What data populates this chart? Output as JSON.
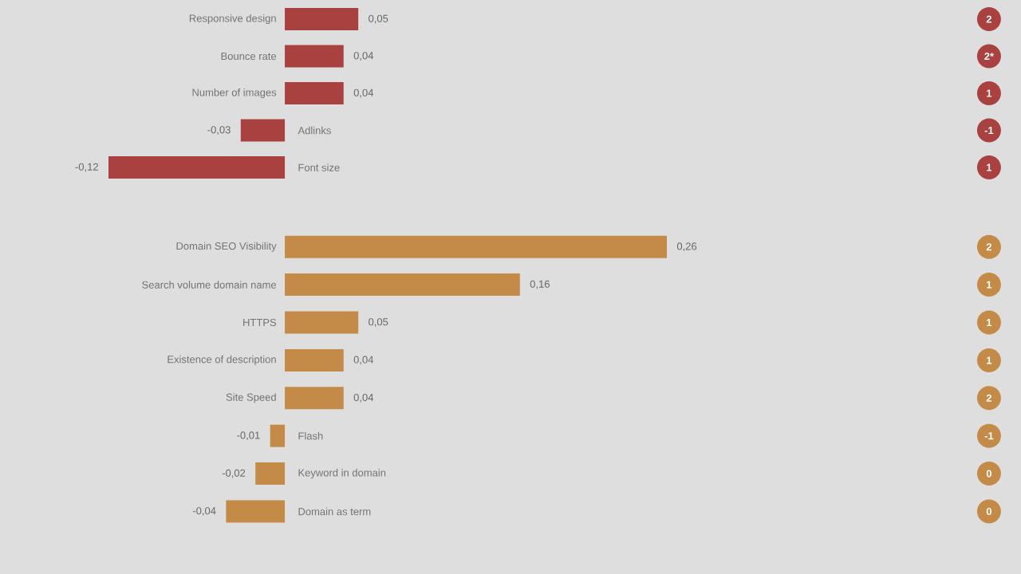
{
  "chart_data": [
    {
      "type": "bar",
      "orientation": "horizontal",
      "categories": [
        "Responsive design",
        "Bounce rate",
        "Number of images",
        "Adlinks",
        "Font size"
      ],
      "values": [
        0.05,
        0.04,
        0.04,
        -0.03,
        -0.12
      ],
      "value_labels": [
        "0,05",
        "0,04",
        "0,04",
        "-0,03",
        "-0,12"
      ],
      "color": "#a8413f",
      "annotations": [
        "2",
        "2*",
        "1",
        "-1",
        "1"
      ]
    },
    {
      "type": "bar",
      "orientation": "horizontal",
      "categories": [
        "Domain SEO Visibility",
        "Search volume domain name",
        "HTTPS",
        "Existence of description",
        "Site Speed",
        "Flash",
        "Keyword in domain",
        "Domain as term"
      ],
      "values": [
        0.26,
        0.16,
        0.05,
        0.04,
        0.04,
        -0.01,
        -0.02,
        -0.04
      ],
      "value_labels": [
        "0,26",
        "0,16",
        "0,05",
        "0,04",
        "0,04",
        "-0,01",
        "-0,02",
        "-0,04"
      ],
      "color": "#c48a48",
      "annotations": [
        "2",
        "1",
        "1",
        "1",
        "2",
        "-1",
        "0",
        "0"
      ]
    }
  ]
}
